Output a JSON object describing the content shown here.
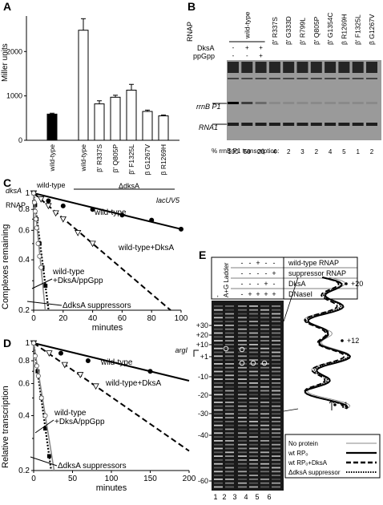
{
  "panels": {
    "A": {
      "letter": "A",
      "ylabel": "Miller units",
      "yticks": [
        "0",
        "1000",
        "2000"
      ],
      "row1_label": "dksA",
      "row2_label": "RNAP",
      "group1_dksa": "wild-type",
      "group2_dksa": "ΔdksA",
      "bar_labels": [
        "wild-type",
        "wild-type",
        "β' R337S",
        "β' Q805P",
        "β' F1325L",
        "β G1267V",
        "β R1269H"
      ]
    },
    "B": {
      "letter": "B",
      "rnap_label": "RNAP",
      "dksa_label": "DksA",
      "ppgpp_label": "ppGpp",
      "columns": [
        "wild-type",
        "β' R337S",
        "β' G333D",
        "β' R799L",
        "β' Q805P",
        "β' G1354C",
        "β R1269H",
        "β' F1325L",
        "β G1267V"
      ],
      "dksa_signs": [
        "-",
        "+",
        "+"
      ],
      "ppgpp_signs": [
        "-",
        "-",
        "+"
      ],
      "band1": "rrnB P1",
      "band2": "RNA1",
      "pct_label": "% rrnB P1 transcription:",
      "pct_values": [
        "100",
        "50",
        "20",
        "4",
        "2",
        "3",
        "2",
        "4",
        "5",
        "1",
        "2"
      ]
    },
    "C": {
      "letter": "C",
      "promoter": "lacUV5",
      "ylabel": "Complexes remaining",
      "xlabel": "minutes",
      "xticks": [
        "0",
        "20",
        "40",
        "60",
        "80",
        "100"
      ],
      "yticks": [
        "1",
        "0.8",
        "0.6",
        "0.4",
        "0.2"
      ],
      "label_wt": "wild-type",
      "label_wt_dksa": "wild-type+DksA",
      "label_wt_dksa_ppgpp_1": "wild-type",
      "label_wt_dksa_ppgpp_2": "+DksA/ppGpp",
      "label_suppressors": "ΔdksA suppressors"
    },
    "D": {
      "letter": "D",
      "promoter": "argI",
      "ylabel": "Relative transcription",
      "xlabel": "minutes",
      "xticks": [
        "0",
        "50",
        "100",
        "150",
        "200"
      ],
      "yticks": [
        "1",
        "0.8",
        "0.6",
        "0.4",
        "0.2"
      ],
      "label_wt": "wild-type",
      "label_wt_dksa": "wild-type+DksA",
      "label_wt_dksa_ppgpp_1": "wild-type",
      "label_wt_dksa_ppgpp_2": "+DksA/ppGpp",
      "label_suppressors": "ΔdksA suppressors"
    },
    "E": {
      "letter": "E",
      "ladder": "A+G Ladder",
      "rows": [
        "wild-type RNAP",
        "suppressor RNAP",
        "DksA",
        "DNaseI"
      ],
      "row_signs": [
        [
          "-",
          "-",
          "+",
          "-",
          "-"
        ],
        [
          "-",
          "-",
          "-",
          "-",
          "+"
        ],
        [
          "-",
          "-",
          "-",
          "+",
          "-"
        ],
        [
          "-",
          "+",
          "+",
          "+",
          "+"
        ]
      ],
      "positions": [
        "+30",
        "+20",
        "+10",
        "+1",
        "-10",
        "-20",
        "-30",
        "-40",
        "-60"
      ],
      "lanes": [
        "1",
        "2",
        "3",
        "4",
        "5",
        "6"
      ],
      "trace_marks": [
        "+20",
        "+12",
        "+1"
      ],
      "legend": [
        "No protein",
        "wt RPₒ",
        "wt RPₒ+DksA",
        "ΔdksA suppressor"
      ]
    }
  },
  "chart_data": [
    {
      "type": "bar",
      "panel": "A",
      "ylabel": "Miller units",
      "ylim": [
        0,
        2800
      ],
      "categories": [
        "wild-type",
        "wild-type",
        "β' R337S",
        "β' Q805P",
        "β' F1325L",
        "β G1267V",
        "β R1269H"
      ],
      "values": [
        590,
        2480,
        820,
        970,
        1130,
        650,
        550
      ],
      "errors": [
        20,
        260,
        70,
        45,
        130,
        30,
        20
      ]
    },
    {
      "type": "scatter",
      "panel": "C",
      "ylabel": "Complexes remaining",
      "xlabel": "minutes",
      "xlim": [
        0,
        100
      ],
      "ylim": [
        0.2,
        1
      ],
      "log_y": true,
      "series": [
        {
          "name": "wild-type",
          "x": [
            0,
            10,
            20,
            40,
            60,
            80,
            100
          ],
          "y": [
            1.0,
            0.9,
            0.84,
            0.8,
            0.74,
            0.69,
            0.61
          ]
        },
        {
          "name": "wild-type+DksA",
          "x": [
            0,
            5,
            10,
            15,
            20,
            30,
            40
          ],
          "y": [
            1.0,
            0.92,
            0.84,
            0.76,
            0.7,
            0.58,
            0.5
          ]
        },
        {
          "name": "wild-type +DksA/ppGpp",
          "x": [
            0,
            1,
            2,
            4,
            6,
            8
          ],
          "y": [
            1.0,
            0.85,
            0.7,
            0.5,
            0.36,
            0.28
          ]
        },
        {
          "name": "ΔdksA suppressors",
          "x": [
            0,
            0.5,
            1,
            1.5,
            2,
            3,
            4,
            5
          ],
          "y": [
            1.0,
            0.88,
            0.78,
            0.7,
            0.62,
            0.5,
            0.42,
            0.36
          ]
        }
      ]
    },
    {
      "type": "scatter",
      "panel": "D",
      "ylabel": "Relative transcription",
      "xlabel": "minutes",
      "xlim": [
        0,
        200
      ],
      "ylim": [
        0.2,
        1
      ],
      "log_y": true,
      "series": [
        {
          "name": "wild-type",
          "x": [
            0,
            35,
            70,
            150
          ],
          "y": [
            1.0,
            0.88,
            0.8,
            0.7
          ]
        },
        {
          "name": "wild-type+DksA",
          "x": [
            0,
            20,
            40,
            60,
            80
          ],
          "y": [
            1.0,
            0.88,
            0.76,
            0.67,
            0.58
          ]
        },
        {
          "name": "wild-type +DksA/ppGpp",
          "x": [
            0,
            5,
            10,
            15,
            20
          ],
          "y": [
            1.0,
            0.7,
            0.5,
            0.34,
            0.24
          ]
        },
        {
          "name": "ΔdksA suppressors",
          "x": [
            0,
            2,
            4,
            6,
            10,
            15
          ],
          "y": [
            1.0,
            0.85,
            0.75,
            0.66,
            0.5,
            0.4
          ]
        }
      ]
    }
  ]
}
